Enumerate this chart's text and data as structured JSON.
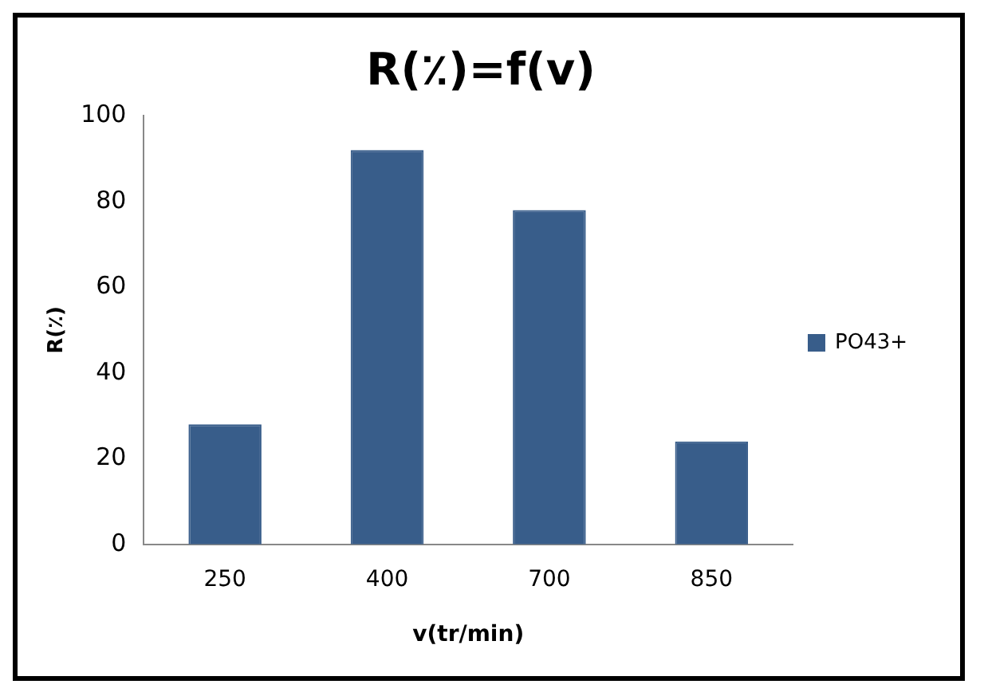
{
  "chart_data": {
    "type": "bar",
    "title": "R(٪)=f(v)",
    "xlabel": "v(tr/min)",
    "ylabel": "R(٪)",
    "categories": [
      "250",
      "400",
      "700",
      "850"
    ],
    "series": [
      {
        "name": "PO43+",
        "color": "#385d8a",
        "values": [
          28,
          92,
          78,
          24
        ]
      }
    ],
    "ylim": [
      0,
      100
    ],
    "yticks": [
      0,
      20,
      40,
      60,
      80,
      100
    ],
    "grid": false,
    "legend": "right"
  }
}
